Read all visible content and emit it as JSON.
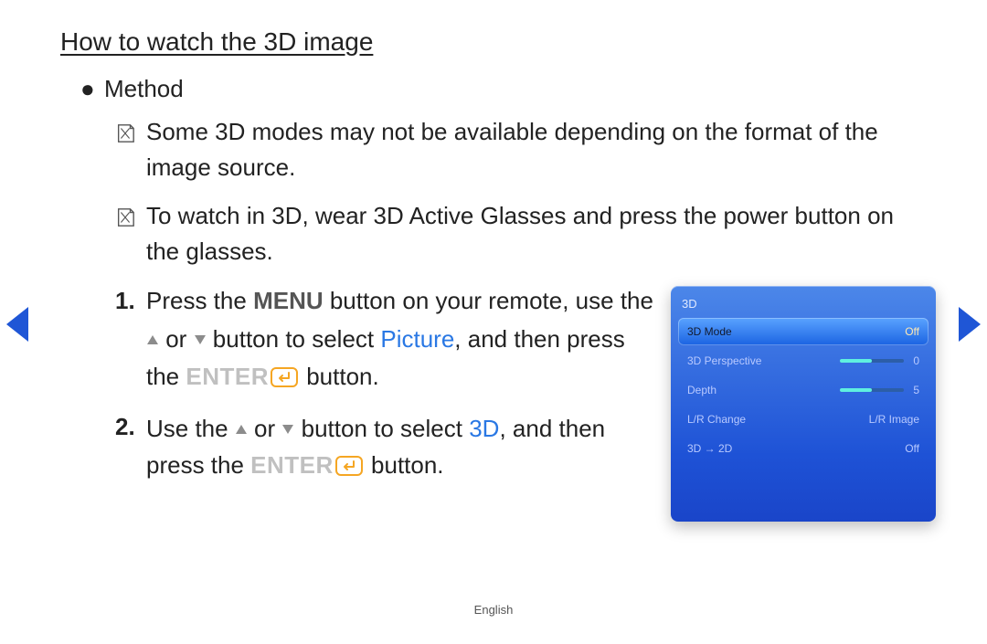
{
  "title": "How to watch the 3D image",
  "method_label": "Method",
  "notes": [
    "Some 3D modes may not be available depending on the format of the image source.",
    "To watch in 3D, wear 3D Active Glasses and press the power button on the glasses."
  ],
  "step1": {
    "num": "1.",
    "pre": "Press the ",
    "menu": "MENU",
    "mid1": " button on your remote, use the ",
    "mid2": " or ",
    "mid3": " button to select ",
    "picture": "Picture",
    "mid4": ", and then press the ",
    "enter": "ENTER",
    "post": " button."
  },
  "step2": {
    "num": "2.",
    "pre": "Use the ",
    "mid1": " or ",
    "mid2": " button to select ",
    "threeD": "3D",
    "mid3": ", and then press the ",
    "enter": "ENTER",
    "post": " button."
  },
  "osd": {
    "title": "3D",
    "rows": [
      {
        "label": "3D Mode",
        "value": "Off",
        "selected": true,
        "type": "text"
      },
      {
        "label": "3D Perspective",
        "value": "0",
        "type": "slider",
        "fill_pct": 50
      },
      {
        "label": "Depth",
        "value": "5",
        "type": "slider",
        "fill_pct": 50
      },
      {
        "label": "L/R Change",
        "value": "L/R Image",
        "type": "text"
      },
      {
        "label": "3D → 2D",
        "value": "Off",
        "type": "text"
      }
    ]
  },
  "footer": "English",
  "colors": {
    "link": "#2a78e4",
    "enter": "#c0c0c0",
    "enter_icon": "#f5a623",
    "tri_gray": "#8c8c8c",
    "nav_blue": "#1f56d6"
  }
}
